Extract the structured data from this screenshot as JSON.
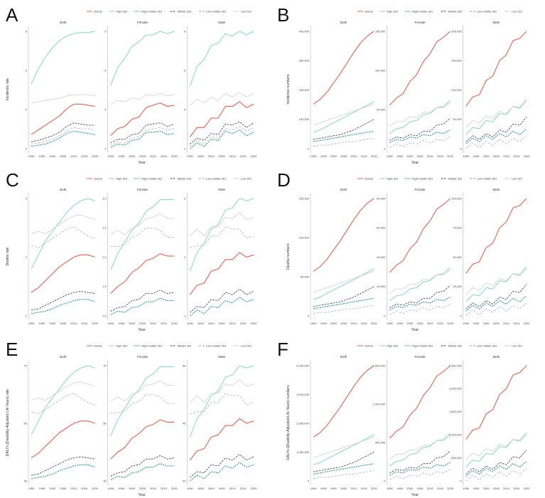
{
  "colors": {
    "Global": "#e8604c",
    "High SDI": "#7fdcb9",
    "High-middle SDI": "#2a9d8f",
    "Middle SDI": "#333333",
    "Low-middle SDI": "#999999",
    "Low SDI": "#cfcfcf"
  },
  "panel_labels": [
    "A",
    "B",
    "C",
    "D",
    "E",
    "F"
  ],
  "chart_data": [
    {
      "panel": "A",
      "type": "line",
      "ylabel": "Incidence rate",
      "xlabel": "Year",
      "facets": [
        "Both",
        "Female",
        "Male"
      ],
      "legend": [
        "Global",
        "High SDI",
        "High-middle SDI",
        "Middle SDI",
        "Low-middle SDI",
        "Low SDI"
      ],
      "xticks": [
        "1990",
        "1995",
        "2000",
        "2005",
        "2010",
        "2015",
        "2020"
      ],
      "yticks": [
        [
          "2",
          "4",
          "6",
          "8"
        ],
        [
          "2",
          "4",
          "6",
          "8"
        ],
        [
          "2",
          "4",
          "6",
          "8"
        ]
      ]
    },
    {
      "panel": "B",
      "type": "line",
      "ylabel": "Incidence numbers",
      "xlabel": "Year",
      "facets": [
        "Both",
        "Female",
        "Male"
      ],
      "legend": [
        "Global",
        "High SDI",
        "High-middle SDI",
        "Middle SDI",
        "Low-middle SDI",
        "Low SDI"
      ],
      "xticks": [
        "1990",
        "1995",
        "2000",
        "2005",
        "2010",
        "2015",
        "2020"
      ],
      "yticks": [
        [
          "0",
          "100,000",
          "200,000",
          "300,000",
          "400,000"
        ],
        [
          "0",
          "50,000",
          "100,000",
          "150,000"
        ],
        [
          "0",
          "50,000",
          "100,000",
          "150,000",
          "200,000"
        ]
      ]
    },
    {
      "panel": "C",
      "type": "line",
      "ylabel": "Deaths rate",
      "xlabel": "Year",
      "facets": [
        "Both",
        "Female",
        "Male"
      ],
      "legend": [
        "Global",
        "High SDI",
        "High-middle SDI",
        "Middle SDI",
        "Low-middle SDI",
        "Low SDI"
      ],
      "xticks": [
        "1990",
        "1995",
        "2000",
        "2005",
        "2010",
        "2015",
        "2020"
      ],
      "yticks": [
        [
          "1",
          "2",
          "3"
        ],
        [
          "1.0",
          "1.5",
          "2.0",
          "2.5",
          "3.0"
        ],
        [
          "1",
          "2",
          "3"
        ]
      ]
    },
    {
      "panel": "D",
      "type": "line",
      "ylabel": "Deaths numbers",
      "xlabel": "Year",
      "facets": [
        "Both",
        "Female",
        "Male"
      ],
      "legend": [
        "Global",
        "High SDI",
        "High-middle SDI",
        "Middle SDI",
        "Low-middle SDI",
        "Low SDI"
      ],
      "xticks": [
        "1990",
        "1995",
        "2000",
        "2005",
        "2010",
        "2015",
        "2020"
      ],
      "yticks": [
        [
          "0",
          "50,000",
          "100,000",
          "150,000"
        ],
        [
          "0",
          "20,000",
          "40,000",
          "60,000",
          "80,000"
        ],
        [
          "0",
          "25,000",
          "50,000",
          "75,000",
          "100,000"
        ]
      ]
    },
    {
      "panel": "E",
      "type": "line",
      "ylabel": "DALYs (Disability-Adjusted Life Years) rate",
      "xlabel": "Year",
      "facets": [
        "Both",
        "Female",
        "Male"
      ],
      "legend": [
        "Global",
        "High SDI",
        "High-middle SDI",
        "Middle SDI",
        "Low-middle SDI",
        "Low SDI"
      ],
      "xticks": [
        "1990",
        "1995",
        "2000",
        "2005",
        "2010",
        "2015",
        "2020"
      ],
      "yticks": [
        [
          "30",
          "50",
          "70"
        ],
        [
          "30",
          "50",
          "70"
        ],
        [
          "20",
          "40",
          "60"
        ]
      ]
    },
    {
      "panel": "F",
      "type": "line",
      "ylabel": "DALYs (Disability-Adjusted Life Years) numbers",
      "xlabel": "Year",
      "facets": [
        "Both",
        "Female",
        "Male"
      ],
      "legend": [
        "Global",
        "High SDI",
        "High-middle SDI",
        "Middle SDI",
        "Low-middle SDI",
        "Low SDI"
      ],
      "xticks": [
        "1990",
        "1995",
        "2000",
        "2005",
        "2010",
        "2015",
        "2020"
      ],
      "yticks": [
        [
          "0",
          "1,000,000",
          "2,000,000",
          "3,000,000",
          "4,000,000"
        ],
        [
          "0",
          "500,000",
          "1,000,000",
          "1,500,000"
        ],
        [
          "0",
          "500,000",
          "1,000,000",
          "1,500,000",
          "2,000,000",
          "2,500,000"
        ]
      ]
    }
  ]
}
